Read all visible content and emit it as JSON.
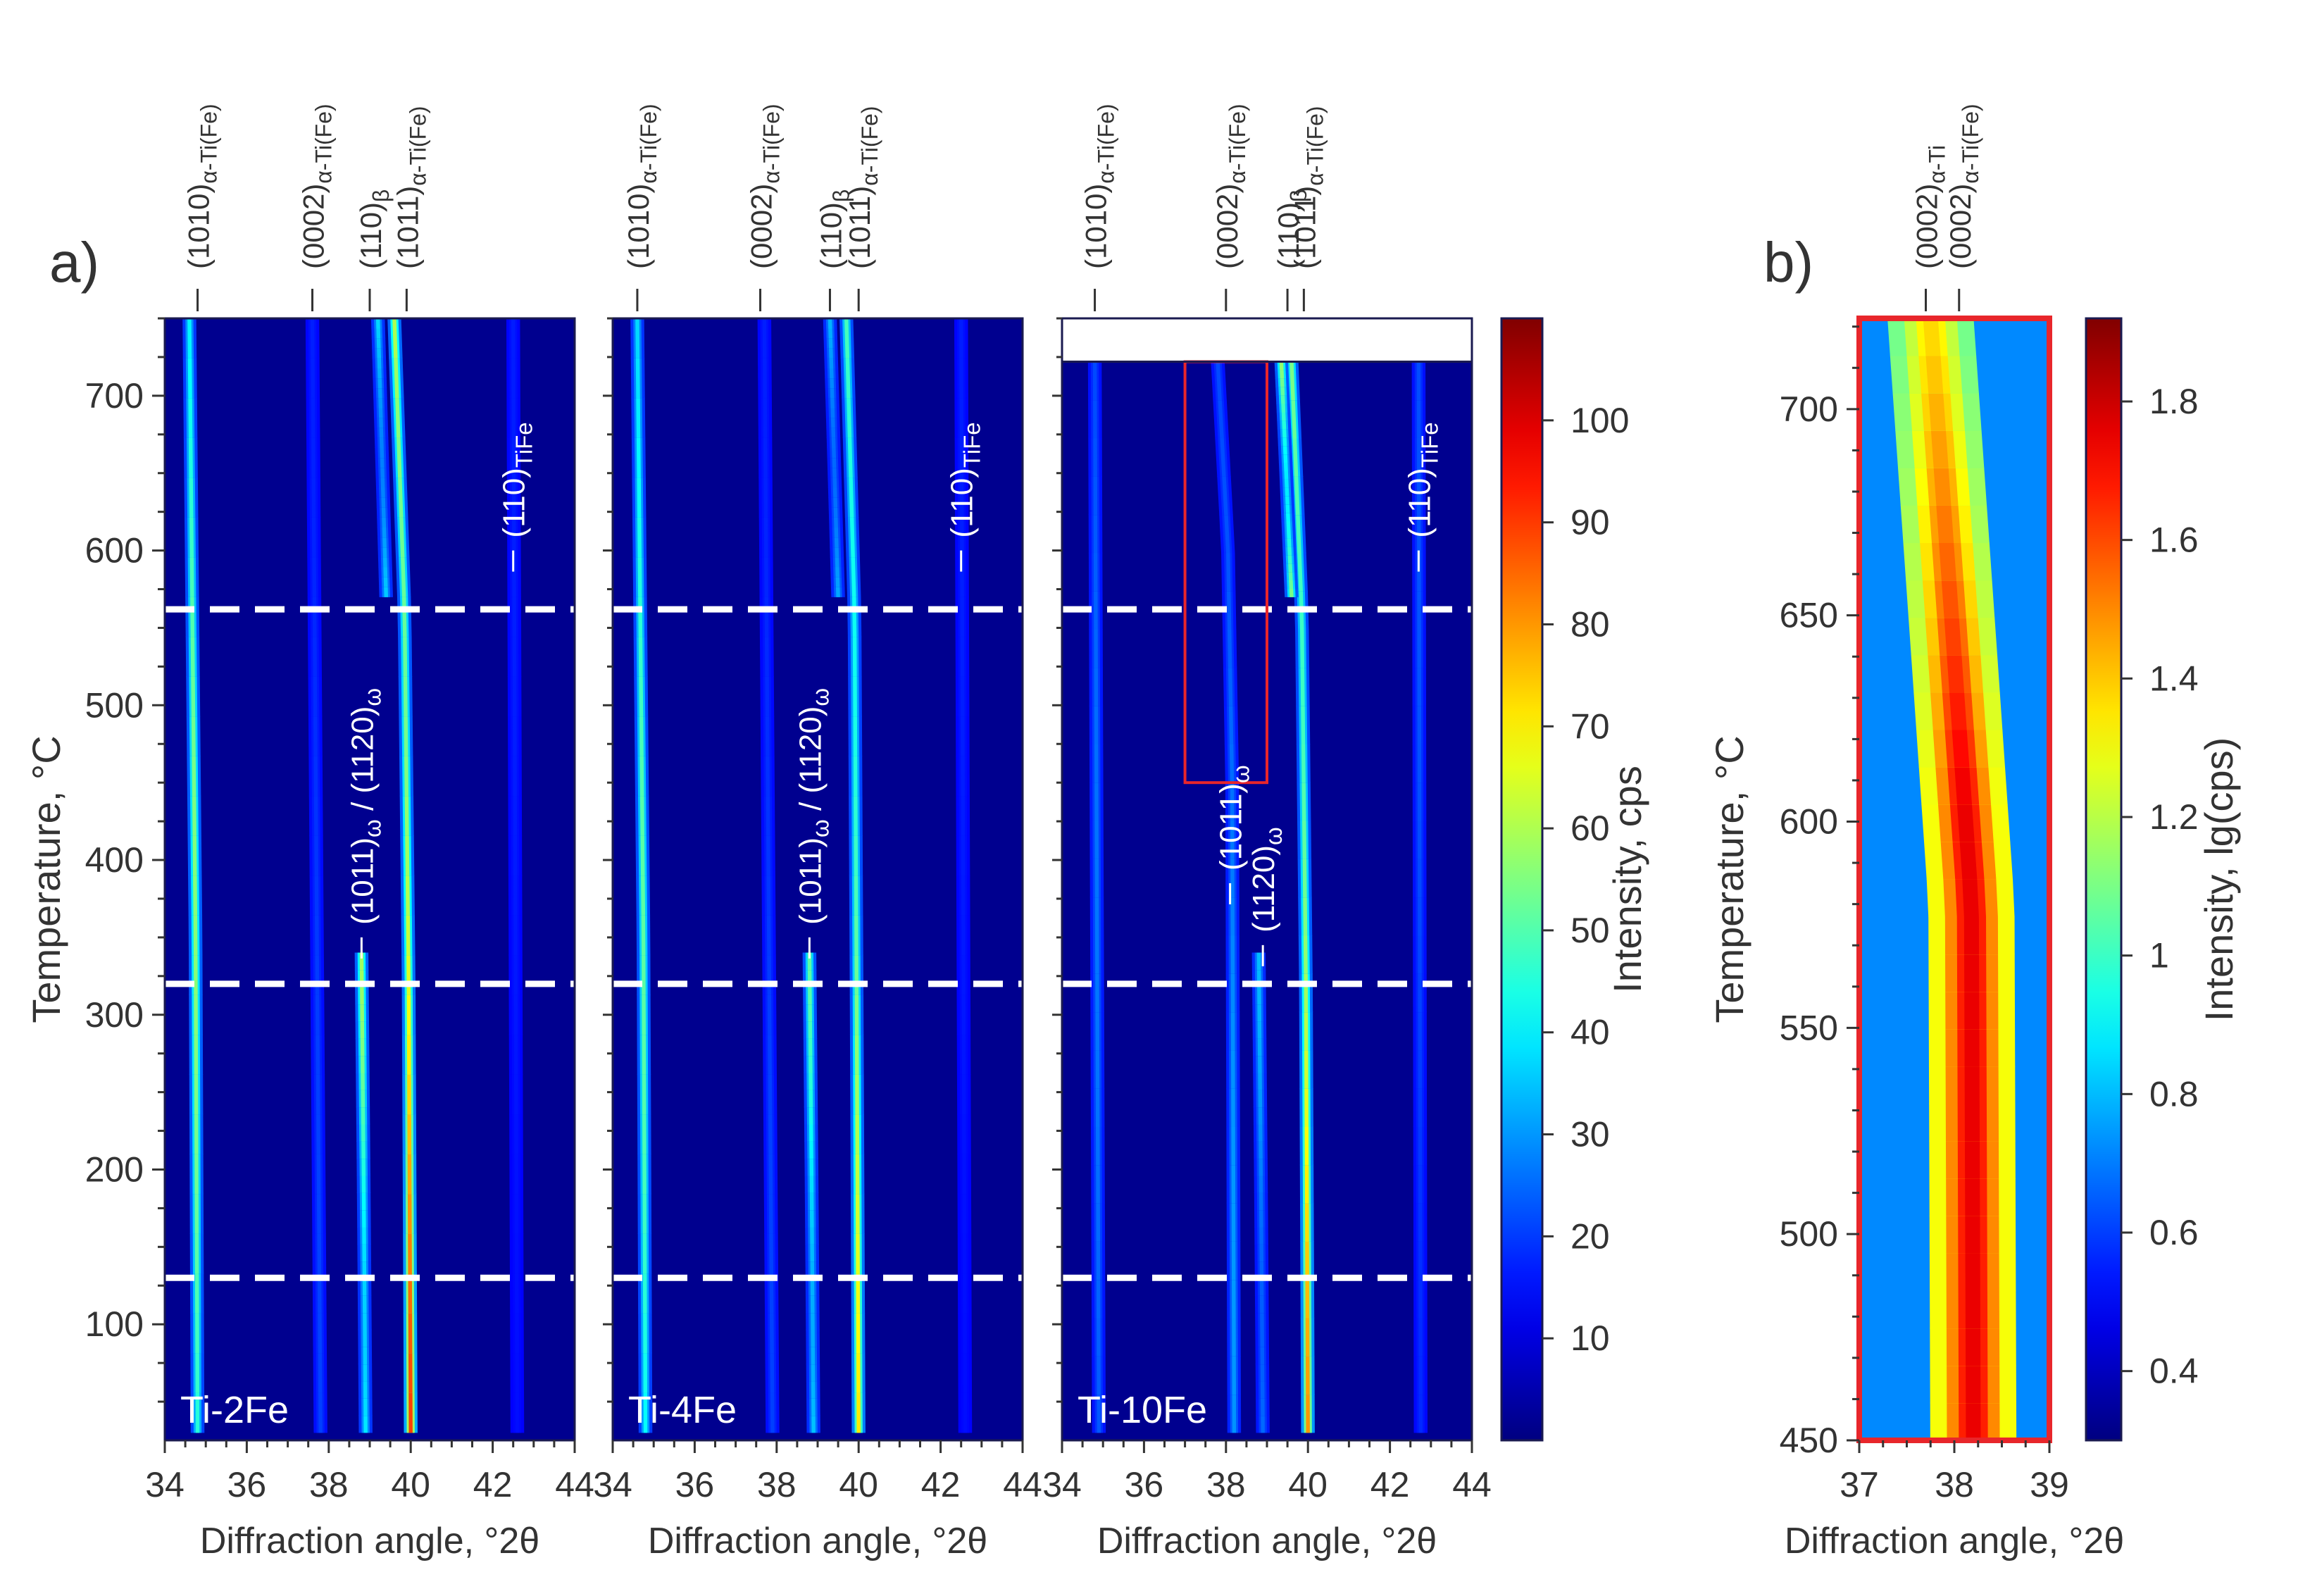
{
  "figure": {
    "panel_a_label": "a)",
    "panel_b_label": "b)"
  },
  "colors": {
    "panel_b_frame": "#e8262b",
    "highlight_box": "#e8262b",
    "dashed_lines": "#ffffff",
    "text": "#333333"
  },
  "chart_data": [
    {
      "type": "heatmap",
      "panel": "a",
      "sample": "Ti-2Fe",
      "xlabel": "Diffraction angle, °2θ",
      "ylabel": "Temperature, °C",
      "xlim": [
        34,
        44
      ],
      "ylim": [
        25,
        750
      ],
      "xticks": [
        34,
        36,
        38,
        40,
        42,
        44
      ],
      "yticks": [
        100,
        200,
        300,
        400,
        500,
        600,
        700
      ],
      "dashed_temperatures": [
        562,
        320,
        130
      ],
      "top_peaks": [
        {
          "label": "(10-10)α-Ti(Fe)",
          "main": "(1010)",
          "sub": "α-Ti(Fe)",
          "angle": 34.8
        },
        {
          "label": "(0002)α-Ti(Fe)",
          "main": "(0002)",
          "sub": "α-Ti(Fe)",
          "angle": 37.6
        },
        {
          "label": "(110)β",
          "main": "(110)",
          "sub": "β",
          "angle": 39.0
        },
        {
          "label": "(10-11)α-Ti(Fe)",
          "main": "(1011)",
          "sub": "α-Ti(Fe)",
          "angle": 39.9
        }
      ],
      "inner_labels": [
        {
          "label": "(110)TiFe",
          "main": "(110)",
          "sub": "TiFe",
          "angle": 42.5,
          "temperature": 590
        },
        {
          "label": "(10-11)ω / (11-20)ω",
          "main": "(1011)",
          "sub": "ω",
          "main2": "/ (1120)",
          "sub2": "ω",
          "angle": 38.8,
          "temperature": 340
        }
      ],
      "peak_tracks": [
        {
          "name": "(10-10)α-Ti(Fe)",
          "path": [
            [
              30,
              34.8
            ],
            [
              350,
              34.75
            ],
            [
              750,
              34.6
            ]
          ],
          "intensity": 45
        },
        {
          "name": "(0002)α-Ti(Fe)",
          "path": [
            [
              30,
              37.8
            ],
            [
              750,
              37.6
            ]
          ],
          "intensity": 8
        },
        {
          "name": "(10-11)α-Ti(Fe)",
          "path": [
            [
              30,
              40.0
            ],
            [
              320,
              39.95
            ],
            [
              560,
              39.85
            ],
            [
              750,
              39.6
            ]
          ],
          "intensity": 82
        },
        {
          "name": "(110)β",
          "path": [
            [
              570,
              39.4
            ],
            [
              750,
              39.2
            ]
          ],
          "intensity": 30
        },
        {
          "name": "ω",
          "path": [
            [
              30,
              38.9
            ],
            [
              200,
              38.85
            ],
            [
              340,
              38.8
            ]
          ],
          "intensity": 48
        },
        {
          "name": "(110)TiFe",
          "path": [
            [
              30,
              42.6
            ],
            [
              750,
              42.5
            ]
          ],
          "intensity": 4
        }
      ],
      "legend_text": "Ti-2Fe"
    },
    {
      "type": "heatmap",
      "panel": "a",
      "sample": "Ti-4Fe",
      "xlabel": "Diffraction angle, °2θ",
      "xlim": [
        34,
        44
      ],
      "ylim": [
        25,
        750
      ],
      "xticks": [
        34,
        36,
        38,
        40,
        42,
        44
      ],
      "dashed_temperatures": [
        562,
        320,
        130
      ],
      "top_peaks": [
        {
          "label": "(10-10)α-Ti(Fe)",
          "main": "(1010)",
          "sub": "α-Ti(Fe)",
          "angle": 34.6
        },
        {
          "label": "(0002)α-Ti(Fe)",
          "main": "(0002)",
          "sub": "α-Ti(Fe)",
          "angle": 37.6
        },
        {
          "label": "(110)β",
          "main": "(110)",
          "sub": "β",
          "angle": 39.3
        },
        {
          "label": "(10-11)α-Ti(Fe)",
          "main": "(1011)",
          "sub": "α-Ti(Fe)",
          "angle": 40.0
        }
      ],
      "inner_labels": [
        {
          "label": "(110)TiFe",
          "main": "(110)",
          "sub": "TiFe",
          "angle": 42.5,
          "temperature": 590
        },
        {
          "label": "(10-11)ω / (11-20)ω",
          "main": "(1011)",
          "sub": "ω",
          "main2": "/ (1120)",
          "sub2": "ω",
          "angle": 38.8,
          "temperature": 340
        }
      ],
      "peak_tracks": [
        {
          "name": "(10-10)α-Ti(Fe)",
          "path": [
            [
              30,
              34.8
            ],
            [
              350,
              34.75
            ],
            [
              750,
              34.6
            ]
          ],
          "intensity": 40
        },
        {
          "name": "(0002)α-Ti(Fe)",
          "path": [
            [
              30,
              37.9
            ],
            [
              750,
              37.7
            ]
          ],
          "intensity": 8
        },
        {
          "name": "(10-11)α-Ti(Fe)",
          "path": [
            [
              30,
              40.0
            ],
            [
              320,
              39.95
            ],
            [
              560,
              39.9
            ],
            [
              750,
              39.7
            ]
          ],
          "intensity": 62
        },
        {
          "name": "(110)β",
          "path": [
            [
              570,
              39.5
            ],
            [
              750,
              39.3
            ]
          ],
          "intensity": 25
        },
        {
          "name": "ω",
          "path": [
            [
              30,
              38.9
            ],
            [
              200,
              38.85
            ],
            [
              340,
              38.8
            ]
          ],
          "intensity": 40
        },
        {
          "name": "(110)TiFe",
          "path": [
            [
              30,
              42.6
            ],
            [
              750,
              42.5
            ]
          ],
          "intensity": 4
        }
      ],
      "legend_text": "Ti-4Fe"
    },
    {
      "type": "heatmap",
      "panel": "a",
      "sample": "Ti-10Fe",
      "xlabel": "Diffraction angle, °2θ",
      "xlim": [
        34,
        44
      ],
      "ylim": [
        25,
        750
      ],
      "data_max_temperature": 722,
      "xticks": [
        34,
        36,
        38,
        40,
        42,
        44
      ],
      "dashed_temperatures": [
        562,
        320,
        130
      ],
      "highlight_box": {
        "angle": [
          37.0,
          39.0
        ],
        "temperature": [
          450,
          722
        ]
      },
      "top_peaks": [
        {
          "label": "(10-10)α-Ti(Fe)",
          "main": "(1010)",
          "sub": "α-Ti(Fe)",
          "angle": 34.8
        },
        {
          "label": "(0002)α-Ti(Fe)",
          "main": "(0002)",
          "sub": "α-Ti(Fe)",
          "angle": 38.0
        },
        {
          "label": "(110)β",
          "main": "(110)",
          "sub": "β",
          "angle": 39.5
        },
        {
          "label": "(10-11)α-Ti(Fe)",
          "main": "(1011)",
          "sub": "α-Ti(Fe)",
          "angle": 39.9
        }
      ],
      "inner_labels": [
        {
          "label": "(110)TiFe",
          "main": "(110)",
          "sub": "TiFe",
          "angle": 42.7,
          "temperature": 590
        },
        {
          "label": "(10-11)ω",
          "main": "(1011)",
          "sub": "ω",
          "angle": 38.1,
          "temperature": 375
        },
        {
          "label": "(11-20)ω",
          "main": "(1120)",
          "sub": "ω",
          "angle": 38.9,
          "temperature": 335
        }
      ],
      "peak_tracks": [
        {
          "name": "(10-10)α-Ti(Fe)",
          "path": [
            [
              30,
              34.9
            ],
            [
              722,
              34.8
            ]
          ],
          "intensity": 14
        },
        {
          "name": "(0002)α-Ti(Fe)",
          "path": [
            [
              30,
              38.2
            ],
            [
              450,
              38.15
            ],
            [
              600,
              38.05
            ],
            [
              722,
              37.8
            ]
          ],
          "intensity": 18
        },
        {
          "name": "(10-11)α-Ti(Fe)",
          "path": [
            [
              30,
              40.0
            ],
            [
              320,
              39.95
            ],
            [
              560,
              39.85
            ],
            [
              722,
              39.6
            ]
          ],
          "intensity": 72
        },
        {
          "name": "(110)β",
          "path": [
            [
              570,
              39.6
            ],
            [
              722,
              39.35
            ]
          ],
          "intensity": 55
        },
        {
          "name": "ω",
          "path": [
            [
              30,
              38.9
            ],
            [
              200,
              38.85
            ],
            [
              340,
              38.8
            ]
          ],
          "intensity": 22
        },
        {
          "name": "(110)TiFe",
          "path": [
            [
              30,
              42.75
            ],
            [
              722,
              42.7
            ]
          ],
          "intensity": 10
        }
      ],
      "legend_text": "Ti-10Fe"
    },
    {
      "type": "heatmap",
      "panel": "a",
      "role": "colorbar",
      "label": "Intensity, cps",
      "range": [
        0,
        110
      ],
      "ticks": [
        10,
        20,
        30,
        40,
        50,
        60,
        70,
        80,
        90,
        100
      ]
    },
    {
      "type": "heatmap",
      "panel": "b",
      "sample": "Ti-10Fe (zoom)",
      "xlabel": "Diffraction angle, °2θ",
      "ylabel": "Temperature, °C",
      "xlim": [
        37,
        39
      ],
      "ylim": [
        450,
        722
      ],
      "xticks": [
        37,
        38,
        39
      ],
      "yticks": [
        450,
        500,
        550,
        600,
        650,
        700
      ],
      "top_peaks": [
        {
          "label": "(0002)α-Ti",
          "main": "(0002)",
          "sub": "α-Ti",
          "angle": 37.7
        },
        {
          "label": "(0002)α-Ti(Fe)",
          "main": "(0002)",
          "sub": "α-Ti(Fe)",
          "angle": 38.05
        }
      ],
      "peak_tracks": [
        {
          "name": "(0002)α-Ti(Fe)",
          "path": [
            [
              450,
              38.2
            ],
            [
              580,
              38.18
            ],
            [
              640,
              38.0
            ],
            [
              722,
              37.75
            ]
          ],
          "intensity": 1.75
        }
      ]
    },
    {
      "type": "heatmap",
      "panel": "b",
      "role": "colorbar",
      "label": "Intensity, lg(cps)",
      "range": [
        0.3,
        1.92
      ],
      "ticks": [
        0.4,
        0.6,
        0.8,
        1,
        1.2,
        1.4,
        1.6,
        1.8
      ],
      "tick_labels": [
        "0.4",
        "0.6",
        "0.8",
        "1",
        "1.2",
        "1.4",
        "1.6",
        "1.8"
      ]
    }
  ]
}
